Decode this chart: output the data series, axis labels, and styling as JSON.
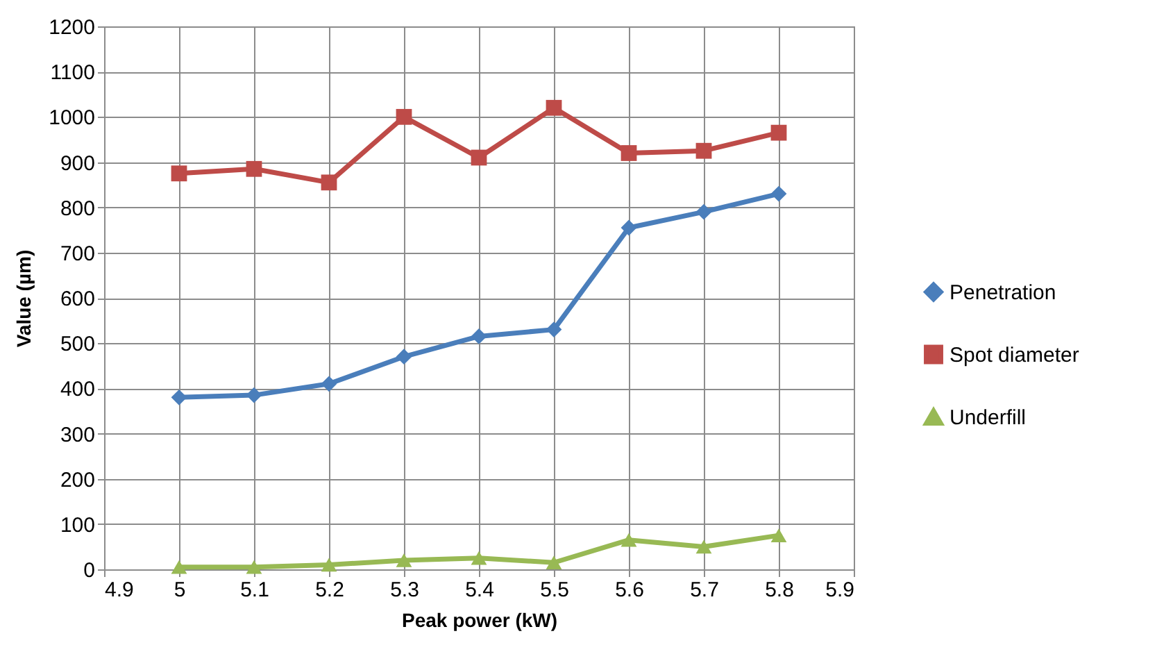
{
  "chart_data": {
    "type": "line",
    "xlabel": "Peak power (kW)",
    "ylabel": "Value (µm)",
    "x": [
      5,
      5.1,
      5.2,
      5.3,
      5.4,
      5.5,
      5.6,
      5.7,
      5.8
    ],
    "series": [
      {
        "name": "Penetration",
        "color": "#4a7ebb",
        "marker": "diamond",
        "values": [
          380,
          385,
          410,
          470,
          515,
          530,
          755,
          790,
          830
        ]
      },
      {
        "name": "Spot diameter",
        "color": "#be4b48",
        "marker": "square",
        "values": [
          875,
          885,
          855,
          1000,
          910,
          1020,
          920,
          925,
          965
        ]
      },
      {
        "name": "Underfill",
        "color": "#98b954",
        "marker": "triangle",
        "values": [
          5,
          5,
          10,
          20,
          25,
          15,
          65,
          50,
          75
        ]
      }
    ],
    "xlim": [
      4.9,
      5.9
    ],
    "xticks": [
      4.9,
      5,
      5.1,
      5.2,
      5.3,
      5.4,
      5.5,
      5.6,
      5.7,
      5.8,
      5.9
    ],
    "ylim": [
      0,
      1200
    ],
    "yticks": [
      0,
      100,
      200,
      300,
      400,
      500,
      600,
      700,
      800,
      900,
      1000,
      1100,
      1200
    ],
    "grid": true,
    "legend": "right",
    "line_style": "solid"
  }
}
